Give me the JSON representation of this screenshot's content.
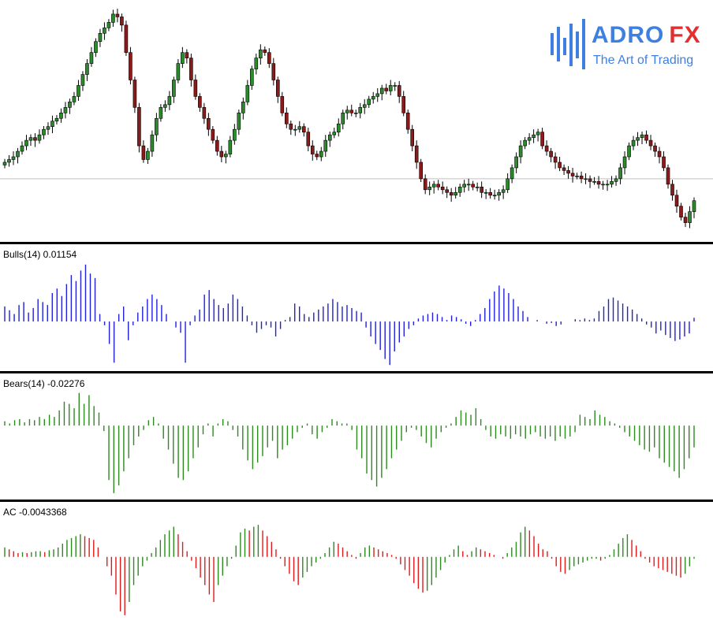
{
  "brand": {
    "name_a": "ADRO",
    "name_b": "FX",
    "tagline": "The Art of Trading",
    "color_blue": "#3f7fe0",
    "color_red": "#e0302f"
  },
  "colors": {
    "bull_candle": "#2b8a2b",
    "bear_candle": "#8b1a1a",
    "bulls_power": "#1f1fdc",
    "bears_power": "#2c8a1e",
    "ac_up": "#2c8a1e",
    "ac_down": "#e01a1a",
    "grid_line": "#c0c0c0"
  },
  "panels": {
    "bulls": {
      "label": "Bulls(14) 0.01154"
    },
    "bears": {
      "label": "Bears(14) -0.02276"
    },
    "ac": {
      "label": "AC -0.0043368"
    }
  },
  "chart_data": [
    {
      "type": "candlestick",
      "title": "",
      "horizontal_line": 0.36,
      "closes": [
        0.42,
        0.43,
        0.44,
        0.46,
        0.48,
        0.5,
        0.51,
        0.5,
        0.52,
        0.54,
        0.55,
        0.57,
        0.58,
        0.6,
        0.62,
        0.64,
        0.66,
        0.7,
        0.74,
        0.78,
        0.82,
        0.86,
        0.89,
        0.91,
        0.93,
        0.96,
        0.95,
        0.92,
        0.82,
        0.72,
        0.62,
        0.48,
        0.43,
        0.46,
        0.52,
        0.58,
        0.62,
        0.63,
        0.66,
        0.72,
        0.78,
        0.82,
        0.8,
        0.72,
        0.66,
        0.62,
        0.58,
        0.54,
        0.5,
        0.46,
        0.44,
        0.45,
        0.5,
        0.54,
        0.6,
        0.64,
        0.7,
        0.76,
        0.8,
        0.83,
        0.82,
        0.78,
        0.72,
        0.66,
        0.6,
        0.56,
        0.54,
        0.54,
        0.55,
        0.53,
        0.48,
        0.45,
        0.44,
        0.46,
        0.5,
        0.52,
        0.53,
        0.56,
        0.6,
        0.61,
        0.6,
        0.6,
        0.62,
        0.63,
        0.65,
        0.66,
        0.67,
        0.69,
        0.68,
        0.7,
        0.7,
        0.66,
        0.6,
        0.54,
        0.48,
        0.42,
        0.36,
        0.32,
        0.33,
        0.34,
        0.33,
        0.32,
        0.31,
        0.3,
        0.31,
        0.33,
        0.34,
        0.34,
        0.33,
        0.33,
        0.31,
        0.31,
        0.3,
        0.3,
        0.31,
        0.32,
        0.36,
        0.4,
        0.44,
        0.48,
        0.5,
        0.51,
        0.52,
        0.53,
        0.48,
        0.46,
        0.44,
        0.42,
        0.4,
        0.39,
        0.38,
        0.37,
        0.37,
        0.36,
        0.36,
        0.35,
        0.35,
        0.34,
        0.34,
        0.34,
        0.35,
        0.36,
        0.4,
        0.44,
        0.48,
        0.5,
        0.51,
        0.52,
        0.5,
        0.48,
        0.46,
        0.44,
        0.4,
        0.34,
        0.3,
        0.26,
        0.22,
        0.2,
        0.24,
        0.28
      ],
      "ylim": [
        0.15,
        1.0
      ]
    },
    {
      "type": "bar",
      "name": "Bulls(14)",
      "baseline": 0,
      "values": [
        0.2,
        0.15,
        0.1,
        0.22,
        0.26,
        0.12,
        0.18,
        0.3,
        0.26,
        0.22,
        0.38,
        0.44,
        0.34,
        0.5,
        0.62,
        0.54,
        0.68,
        0.76,
        0.64,
        0.58,
        0.1,
        -0.05,
        -0.3,
        -0.55,
        0.1,
        0.2,
        -0.25,
        -0.05,
        0.12,
        0.2,
        0.3,
        0.36,
        0.3,
        0.22,
        0.1,
        0.0,
        -0.08,
        -0.15,
        -0.55,
        -0.05,
        0.08,
        0.16,
        0.36,
        0.42,
        0.3,
        0.22,
        0.18,
        0.24,
        0.36,
        0.3,
        0.2,
        0.08,
        -0.05,
        -0.15,
        -0.1,
        -0.05,
        -0.08,
        -0.2,
        -0.1,
        0.02,
        0.06,
        0.24,
        0.2,
        0.1,
        0.06,
        0.12,
        0.16,
        0.2,
        0.24,
        0.3,
        0.26,
        0.2,
        0.22,
        0.18,
        0.14,
        0.12,
        -0.08,
        -0.2,
        -0.3,
        -0.38,
        -0.5,
        -0.58,
        -0.4,
        -0.28,
        -0.2,
        -0.1,
        -0.05,
        0.04,
        0.08,
        0.1,
        0.12,
        0.1,
        0.06,
        0.02,
        0.08,
        0.06,
        0.03,
        -0.03,
        -0.06,
        0.02,
        0.1,
        0.18,
        0.3,
        0.4,
        0.48,
        0.44,
        0.38,
        0.3,
        0.2,
        0.14,
        0.06,
        0.0,
        0.02,
        0.0,
        -0.03,
        -0.02,
        -0.06,
        -0.04,
        0.0,
        0.0,
        0.03,
        0.02,
        0.04,
        0.02,
        0.04,
        0.14,
        0.2,
        0.3,
        0.32,
        0.28,
        0.24,
        0.2,
        0.16,
        0.1,
        0.04,
        -0.04,
        -0.08,
        -0.16,
        -0.12,
        -0.18,
        -0.22,
        -0.26,
        -0.24,
        -0.2,
        -0.16,
        0.05
      ],
      "ylim": [
        -0.62,
        0.8
      ]
    },
    {
      "type": "bar",
      "name": "Bears(14)",
      "baseline": 0,
      "values": [
        0.04,
        0.02,
        0.05,
        0.06,
        0.03,
        0.06,
        0.05,
        0.08,
        0.06,
        0.1,
        0.08,
        0.14,
        0.22,
        0.2,
        0.16,
        0.3,
        0.2,
        0.28,
        0.18,
        0.12,
        -0.05,
        -0.5,
        -0.62,
        -0.55,
        -0.42,
        -0.3,
        -0.18,
        -0.1,
        -0.04,
        0.05,
        0.08,
        0.02,
        -0.12,
        -0.22,
        -0.35,
        -0.48,
        -0.5,
        -0.42,
        -0.3,
        -0.2,
        -0.08,
        0.02,
        -0.1,
        0.02,
        0.06,
        0.04,
        -0.04,
        -0.1,
        -0.22,
        -0.32,
        -0.4,
        -0.34,
        -0.28,
        -0.2,
        -0.14,
        -0.3,
        -0.22,
        -0.18,
        -0.12,
        -0.06,
        -0.02,
        0.02,
        -0.08,
        -0.12,
        -0.06,
        -0.02,
        0.06,
        0.04,
        0.02,
        0.02,
        -0.04,
        -0.22,
        -0.3,
        -0.44,
        -0.5,
        -0.56,
        -0.48,
        -0.4,
        -0.3,
        -0.22,
        -0.14,
        -0.06,
        -0.02,
        -0.04,
        -0.1,
        -0.16,
        -0.2,
        -0.12,
        -0.06,
        -0.02,
        0.02,
        0.08,
        0.14,
        0.12,
        0.1,
        0.16,
        0.06,
        -0.04,
        -0.1,
        -0.12,
        -0.08,
        -0.1,
        -0.12,
        -0.08,
        -0.1,
        -0.12,
        -0.08,
        -0.06,
        -0.1,
        -0.12,
        -0.1,
        -0.14,
        -0.1,
        -0.12,
        -0.1,
        -0.06,
        0.1,
        0.08,
        0.06,
        0.14,
        0.1,
        0.08,
        0.04,
        0.02,
        -0.02,
        -0.06,
        -0.1,
        -0.14,
        -0.18,
        -0.22,
        -0.24,
        -0.2,
        -0.3,
        -0.34,
        -0.38,
        -0.42,
        -0.48,
        -0.4,
        -0.3,
        -0.2
      ],
      "ylim": [
        -0.65,
        0.32
      ]
    },
    {
      "type": "bar",
      "name": "AC",
      "baseline": 0,
      "values": [
        0.1,
        0.08,
        0.06,
        0.04,
        0.05,
        0.04,
        0.05,
        0.06,
        0.06,
        0.05,
        0.07,
        0.08,
        0.1,
        0.14,
        0.18,
        0.2,
        0.22,
        0.24,
        0.22,
        0.2,
        0.18,
        0.1,
        0.0,
        -0.1,
        -0.2,
        -0.4,
        -0.58,
        -0.62,
        -0.48,
        -0.3,
        -0.2,
        -0.1,
        -0.04,
        0.04,
        0.1,
        0.18,
        0.24,
        0.28,
        0.32,
        0.24,
        0.16,
        0.06,
        -0.04,
        -0.12,
        -0.22,
        -0.3,
        -0.4,
        -0.48,
        -0.3,
        -0.2,
        -0.1,
        -0.02,
        0.12,
        0.26,
        0.3,
        0.28,
        0.32,
        0.34,
        0.28,
        0.22,
        0.16,
        0.08,
        -0.02,
        -0.1,
        -0.18,
        -0.26,
        -0.3,
        -0.22,
        -0.16,
        -0.1,
        -0.06,
        -0.02,
        0.04,
        0.1,
        0.16,
        0.14,
        0.1,
        0.06,
        0.02,
        -0.02,
        0.04,
        0.1,
        0.12,
        0.1,
        0.08,
        0.06,
        0.04,
        0.02,
        -0.02,
        -0.08,
        -0.14,
        -0.2,
        -0.28,
        -0.34,
        -0.38,
        -0.36,
        -0.3,
        -0.22,
        -0.14,
        -0.06,
        0.02,
        0.08,
        0.12,
        0.06,
        0.02,
        0.06,
        0.1,
        0.08,
        0.06,
        0.04,
        0.02,
        0.0,
        -0.02,
        0.04,
        0.1,
        0.16,
        0.26,
        0.32,
        0.28,
        0.22,
        0.14,
        0.08,
        0.06,
        -0.02,
        -0.1,
        -0.16,
        -0.18,
        -0.14,
        -0.1,
        -0.08,
        -0.06,
        -0.04,
        -0.02,
        -0.02,
        -0.04,
        -0.02,
        0.02,
        0.08,
        0.14,
        0.2,
        0.24,
        0.18,
        0.12,
        0.06,
        -0.02,
        -0.06,
        -0.1,
        -0.12,
        -0.14,
        -0.16,
        -0.18,
        -0.2,
        -0.22,
        -0.18,
        -0.1,
        -0.02
      ],
      "ylim": [
        -0.68,
        0.4
      ]
    }
  ]
}
